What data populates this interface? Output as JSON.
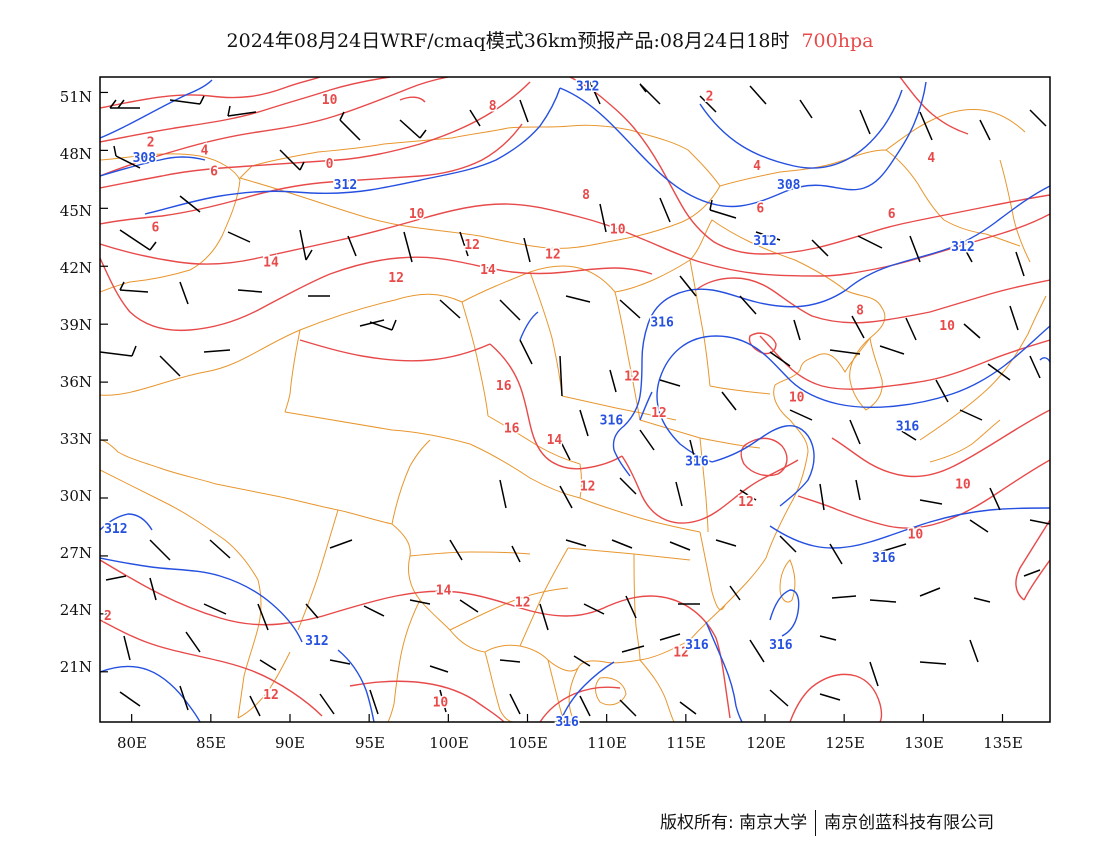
{
  "title": {
    "main": "2024年08月24日WRF/cmaq模式36km预报产品:08月24日18时",
    "level": "700hpa"
  },
  "axes": {
    "lon_labels": [
      "80E",
      "85E",
      "90E",
      "95E",
      "100E",
      "105E",
      "110E",
      "115E",
      "120E",
      "125E",
      "130E",
      "135E"
    ],
    "lat_labels": [
      "51N",
      "48N",
      "45N",
      "42N",
      "39N",
      "36N",
      "33N",
      "30N",
      "27N",
      "24N",
      "21N"
    ]
  },
  "contour_labels": {
    "temperature": [
      {
        "text": "10",
        "lon": 92.5,
        "lat": 50.6
      },
      {
        "text": "8",
        "lon": 102.8,
        "lat": 50.3
      },
      {
        "text": "2",
        "lon": 116.5,
        "lat": 50.8
      },
      {
        "text": "2",
        "lon": 81.2,
        "lat": 48.4
      },
      {
        "text": "4",
        "lon": 84.6,
        "lat": 48.0
      },
      {
        "text": "6",
        "lon": 85.2,
        "lat": 46.9
      },
      {
        "text": "0",
        "lon": 92.5,
        "lat": 47.3
      },
      {
        "text": "4",
        "lon": 119.5,
        "lat": 47.2
      },
      {
        "text": "4",
        "lon": 130.5,
        "lat": 47.6
      },
      {
        "text": "6",
        "lon": 81.5,
        "lat": 44.0
      },
      {
        "text": "10",
        "lon": 98.0,
        "lat": 44.7
      },
      {
        "text": "8",
        "lon": 108.7,
        "lat": 45.7
      },
      {
        "text": "6",
        "lon": 119.7,
        "lat": 45.0
      },
      {
        "text": "6",
        "lon": 128.0,
        "lat": 44.7
      },
      {
        "text": "10",
        "lon": 110.7,
        "lat": 43.9
      },
      {
        "text": "14",
        "lon": 88.8,
        "lat": 42.2
      },
      {
        "text": "12",
        "lon": 96.7,
        "lat": 41.4
      },
      {
        "text": "12",
        "lon": 101.5,
        "lat": 43.1
      },
      {
        "text": "14",
        "lon": 102.5,
        "lat": 41.8
      },
      {
        "text": "12",
        "lon": 106.6,
        "lat": 42.6
      },
      {
        "text": "8",
        "lon": 126.0,
        "lat": 39.7
      },
      {
        "text": "10",
        "lon": 131.5,
        "lat": 38.9
      },
      {
        "text": "12",
        "lon": 111.6,
        "lat": 36.3
      },
      {
        "text": "10",
        "lon": 122.0,
        "lat": 35.2
      },
      {
        "text": "16",
        "lon": 103.5,
        "lat": 35.8
      },
      {
        "text": "16",
        "lon": 104.0,
        "lat": 33.6
      },
      {
        "text": "14",
        "lon": 106.7,
        "lat": 33.0
      },
      {
        "text": "12",
        "lon": 113.3,
        "lat": 34.4
      },
      {
        "text": "12",
        "lon": 108.8,
        "lat": 30.6
      },
      {
        "text": "12",
        "lon": 118.8,
        "lat": 29.8
      },
      {
        "text": "10",
        "lon": 132.5,
        "lat": 30.7
      },
      {
        "text": "10",
        "lon": 129.5,
        "lat": 28.1
      },
      {
        "text": "14",
        "lon": 99.7,
        "lat": 25.2
      },
      {
        "text": "12",
        "lon": 104.7,
        "lat": 24.6
      },
      {
        "text": "2",
        "lon": 78.5,
        "lat": 23.9
      },
      {
        "text": "12",
        "lon": 114.7,
        "lat": 22.0
      },
      {
        "text": "12",
        "lon": 88.8,
        "lat": 19.8
      },
      {
        "text": "10",
        "lon": 99.5,
        "lat": 19.4
      }
    ],
    "height": [
      {
        "text": "312",
        "lon": 108.8,
        "lat": 51.3
      },
      {
        "text": "308",
        "lon": 80.8,
        "lat": 47.6
      },
      {
        "text": "312",
        "lon": 93.5,
        "lat": 46.2
      },
      {
        "text": "308",
        "lon": 121.5,
        "lat": 46.2
      },
      {
        "text": "312",
        "lon": 120.0,
        "lat": 43.3
      },
      {
        "text": "312",
        "lon": 132.5,
        "lat": 43.0
      },
      {
        "text": "316",
        "lon": 113.5,
        "lat": 39.1
      },
      {
        "text": "316",
        "lon": 110.3,
        "lat": 34.0
      },
      {
        "text": "316",
        "lon": 129.0,
        "lat": 33.7
      },
      {
        "text": "316",
        "lon": 115.7,
        "lat": 31.9
      },
      {
        "text": "312",
        "lon": 79.0,
        "lat": 28.4
      },
      {
        "text": "316",
        "lon": 127.5,
        "lat": 26.9
      },
      {
        "text": "312",
        "lon": 91.7,
        "lat": 22.6
      },
      {
        "text": "316",
        "lon": 115.7,
        "lat": 22.4
      },
      {
        "text": "316",
        "lon": 121.0,
        "lat": 22.4
      },
      {
        "text": "316",
        "lon": 107.5,
        "lat": 18.4
      }
    ]
  },
  "colors": {
    "temperature": "#e84a4a",
    "height": "#2550e0",
    "border": "#e8962e",
    "barb": "#000000",
    "title_level": "#e84a4a"
  },
  "footer": {
    "copyright": "版权所有: 南京大学",
    "company": "南京创蓝科技有限公司"
  }
}
